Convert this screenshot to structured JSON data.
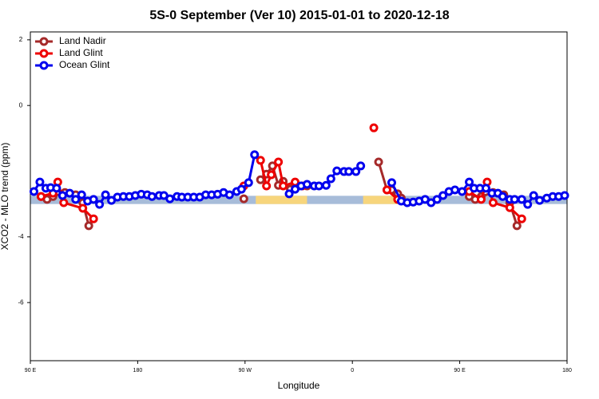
{
  "chart_data": {
    "type": "line",
    "title": "5S-0 September (Ver 10)   2015-01-01 to 2020-12-18",
    "xlabel": "Longitude",
    "ylabel": "XCO2 - MLO trend (ppm)",
    "xlim": [
      90,
      540
    ],
    "ylim": [
      -7.77,
      2.24
    ],
    "xticks": [
      {
        "value": 90,
        "label": "90 E"
      },
      {
        "value": 180,
        "label": "180"
      },
      {
        "value": 270,
        "label": "90 W"
      },
      {
        "value": 360,
        "label": "0"
      },
      {
        "value": 450,
        "label": "90 E"
      },
      {
        "value": 540,
        "label": "180"
      }
    ],
    "yticks": [
      2,
      0,
      -4,
      -6
    ],
    "legend": "top-left",
    "bands": [
      {
        "color": "#a7bcd9",
        "xlim": [
          90,
          540
        ],
        "ylim": [
          -3.0,
          -2.75
        ]
      },
      {
        "color": "#f7d57c",
        "xlim": [
          279,
          322
        ],
        "ylim": [
          -3.0,
          -2.75
        ]
      },
      {
        "color": "#f7d57c",
        "xlim": [
          369,
          399
        ],
        "ylim": [
          -3.0,
          -2.75
        ]
      }
    ],
    "series": [
      {
        "name": "Land Nadir",
        "color": "#a52a2a",
        "x": [
          99,
          104,
          109,
          119,
          128,
          134,
          139,
          null,
          269,
          null,
          283,
          288,
          293,
          298,
          302,
          308,
          312,
          322,
          null,
          382,
          389,
          393,
          398,
          401,
          null,
          458,
          463,
          468,
          478,
          487,
          492,
          498
        ],
        "values": [
          -2.77,
          -2.86,
          -2.77,
          -2.65,
          -2.72,
          -2.96,
          -3.66,
          null,
          -2.84,
          null,
          -2.26,
          -2.09,
          -1.84,
          -2.43,
          -2.31,
          -2.55,
          -2.4,
          -2.45,
          null,
          -1.72,
          -2.57,
          -2.57,
          -2.69,
          -2.82,
          null,
          -2.77,
          -2.86,
          -2.77,
          -2.65,
          -2.72,
          -2.96,
          -3.66
        ]
      },
      {
        "name": "Land Glint",
        "color": "#ee0000",
        "x": [
          99,
          109,
          113,
          118,
          134,
          143,
          null,
          269,
          null,
          283,
          288,
          292,
          298,
          302,
          312,
          318,
          null,
          378,
          null,
          389,
          398,
          null,
          458,
          468,
          473,
          478,
          492,
          502
        ],
        "values": [
          -2.77,
          -2.67,
          -2.33,
          -2.96,
          -3.13,
          -3.45,
          null,
          -2.45,
          null,
          -1.67,
          -2.45,
          -2.11,
          -1.72,
          -2.45,
          -2.33,
          -2.45,
          null,
          -0.68,
          null,
          -2.57,
          -2.86,
          null,
          -2.62,
          -2.86,
          -2.33,
          -2.96,
          -3.11,
          -3.45
        ]
      },
      {
        "name": "Ocean Glint",
        "color": "#0000ee",
        "x": [
          93,
          98,
          103,
          107,
          112,
          117,
          123,
          128,
          133,
          138,
          143,
          148,
          153,
          158,
          163,
          168,
          173,
          178,
          183,
          188,
          192,
          198,
          202,
          207,
          213,
          217,
          222,
          227,
          232,
          237,
          242,
          247,
          252,
          257,
          263,
          267,
          273,
          278,
          null,
          307,
          312,
          317,
          322,
          328,
          332,
          338,
          342,
          347,
          353,
          357,
          363,
          367,
          null,
          393,
          401,
          406,
          411,
          416,
          421,
          426,
          431,
          436,
          441,
          446,
          452,
          458,
          462,
          467,
          472,
          477,
          482,
          486,
          492,
          496,
          502,
          507,
          512,
          517,
          523,
          528,
          533,
          538
        ],
        "values": [
          -2.62,
          -2.33,
          -2.52,
          -2.5,
          -2.52,
          -2.74,
          -2.67,
          -2.86,
          -2.72,
          -2.91,
          -2.86,
          -3.01,
          -2.72,
          -2.89,
          -2.79,
          -2.77,
          -2.77,
          -2.74,
          -2.7,
          -2.72,
          -2.77,
          -2.74,
          -2.74,
          -2.84,
          -2.77,
          -2.79,
          -2.79,
          -2.79,
          -2.79,
          -2.72,
          -2.72,
          -2.7,
          -2.65,
          -2.72,
          -2.62,
          -2.55,
          -2.35,
          -1.5,
          null,
          -2.69,
          -2.55,
          -2.45,
          -2.4,
          -2.45,
          -2.45,
          -2.43,
          -2.23,
          -1.99,
          -2.01,
          -2.01,
          -2.01,
          -1.84,
          null,
          -2.35,
          -2.91,
          -2.96,
          -2.94,
          -2.91,
          -2.86,
          -2.96,
          -2.86,
          -2.74,
          -2.62,
          -2.57,
          -2.62,
          -2.33,
          -2.52,
          -2.52,
          -2.52,
          -2.67,
          -2.67,
          -2.77,
          -2.86,
          -2.86,
          -2.86,
          -3.01,
          -2.74,
          -2.89,
          -2.82,
          -2.77,
          -2.77,
          -2.74
        ]
      }
    ]
  }
}
